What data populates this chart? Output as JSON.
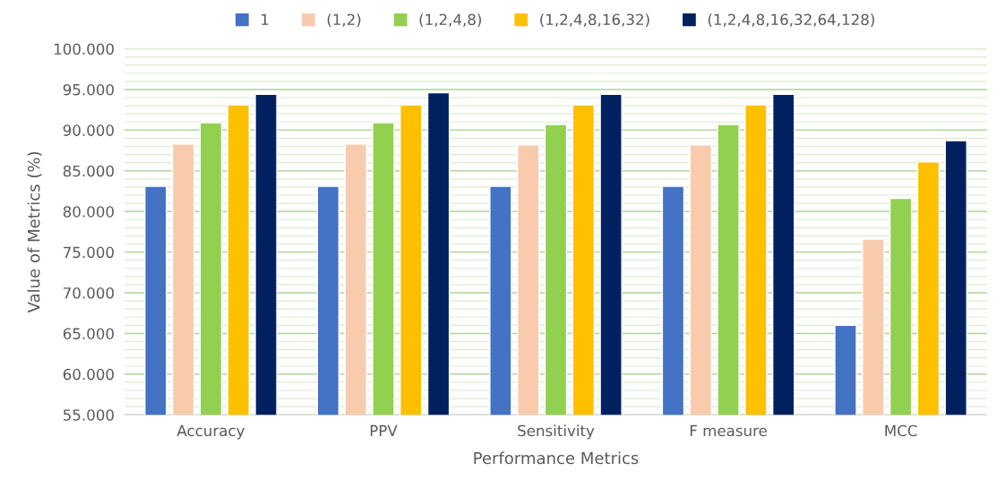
{
  "chart_data": {
    "type": "bar",
    "xlabel": "Performance Metrics",
    "ylabel": "Value of Metrics (%)",
    "categories": [
      "Accuracy",
      "PPV",
      "Sensitivity",
      "F measure",
      "MCC"
    ],
    "series": [
      {
        "name": "1",
        "color": "#4472c4",
        "values": [
          83.1,
          83.1,
          83.1,
          83.1,
          66.0
        ]
      },
      {
        "name": "(1,2)",
        "color": "#f8cbad",
        "values": [
          88.3,
          88.3,
          88.2,
          88.2,
          76.6
        ]
      },
      {
        "name": "(1,2,4,8)",
        "color": "#92d050",
        "values": [
          90.9,
          90.9,
          90.7,
          90.7,
          81.6
        ]
      },
      {
        "name": "(1,2,4,8,16,32)",
        "color": "#ffc000",
        "values": [
          93.1,
          93.1,
          93.1,
          93.1,
          86.1
        ]
      },
      {
        "name": "(1,2,4,8,16,32,64,128)",
        "color": "#002060",
        "values": [
          94.4,
          94.6,
          94.4,
          94.4,
          88.7
        ]
      }
    ],
    "ylim": [
      55,
      100
    ],
    "yticks": [
      {
        "value": 55,
        "label": "55.000"
      },
      {
        "value": 60,
        "label": "60.000"
      },
      {
        "value": 65,
        "label": "65.000"
      },
      {
        "value": 70,
        "label": "70.000"
      },
      {
        "value": 75,
        "label": "75.000"
      },
      {
        "value": 80,
        "label": "80.000"
      },
      {
        "value": 85,
        "label": "85.000"
      },
      {
        "value": 90,
        "label": "90.000"
      },
      {
        "value": 95,
        "label": "95.000"
      },
      {
        "value": 100,
        "label": "100.000"
      }
    ],
    "grid": "y",
    "legend": "top"
  }
}
